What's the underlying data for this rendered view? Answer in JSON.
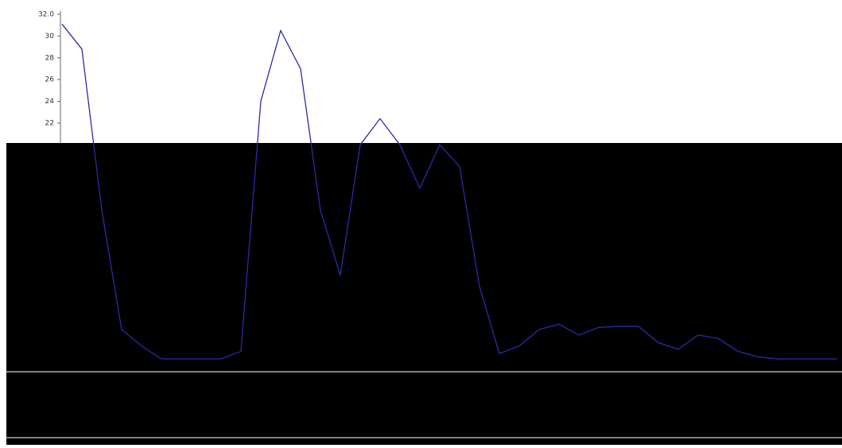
{
  "chart_data": {
    "type": "line",
    "values": [
      31.1,
      28.8,
      14,
      3,
      1.5,
      0.3,
      0.3,
      0.3,
      0.3,
      1,
      24,
      30.5,
      27,
      14,
      8,
      20,
      22.4,
      20,
      16,
      20,
      18,
      7,
      0.8,
      1.5,
      3,
      3.5,
      2.5,
      3.2,
      3.3,
      3.3,
      1.8,
      1.2,
      2.5,
      2.2,
      1,
      0.5,
      0.3,
      0.3,
      0.3,
      0.3
    ],
    "color": "#2a2aa8",
    "ylim": [
      0,
      32
    ],
    "yticks": [
      {
        "value": 32,
        "label": "32.0"
      },
      30,
      28,
      26,
      24,
      22
    ]
  }
}
